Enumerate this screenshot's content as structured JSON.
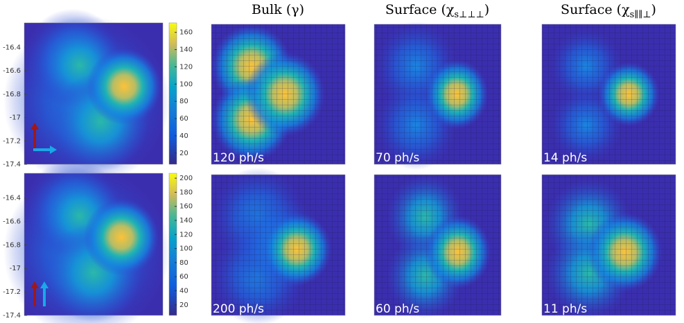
{
  "column_titles": [
    {
      "text": "Bulk (γ)"
    },
    {
      "text": "Surface (χ",
      "subscript": "s⊥⊥⊥",
      "close": ")"
    },
    {
      "text": "Surface (χ",
      "subscript": "s∥∥⊥",
      "close": ")"
    }
  ],
  "rows": [
    {
      "position_ticks": [
        -16.4,
        -16.6,
        -16.8,
        -17,
        -17.2,
        -17.4
      ],
      "position_lim": [
        -16.19,
        -17.4
      ],
      "colorbar_ticks": [
        20,
        40,
        60,
        80,
        100,
        120,
        140,
        160
      ],
      "colorbar_lim": [
        7,
        171
      ],
      "maps": [
        "120 ph/s",
        "70 ph/s",
        "14 ph/s"
      ]
    },
    {
      "position_ticks": [
        -16.4,
        -16.6,
        -16.8,
        -17,
        -17.2,
        -17.4
      ],
      "position_lim": [
        -16.19,
        -17.4
      ],
      "colorbar_ticks": [
        20,
        40,
        60,
        80,
        100,
        120,
        140,
        160,
        180,
        200
      ],
      "colorbar_lim": [
        5,
        207
      ],
      "maps": [
        "200 ph/s",
        "60 ph/s",
        "11 ph/s"
      ]
    }
  ]
}
